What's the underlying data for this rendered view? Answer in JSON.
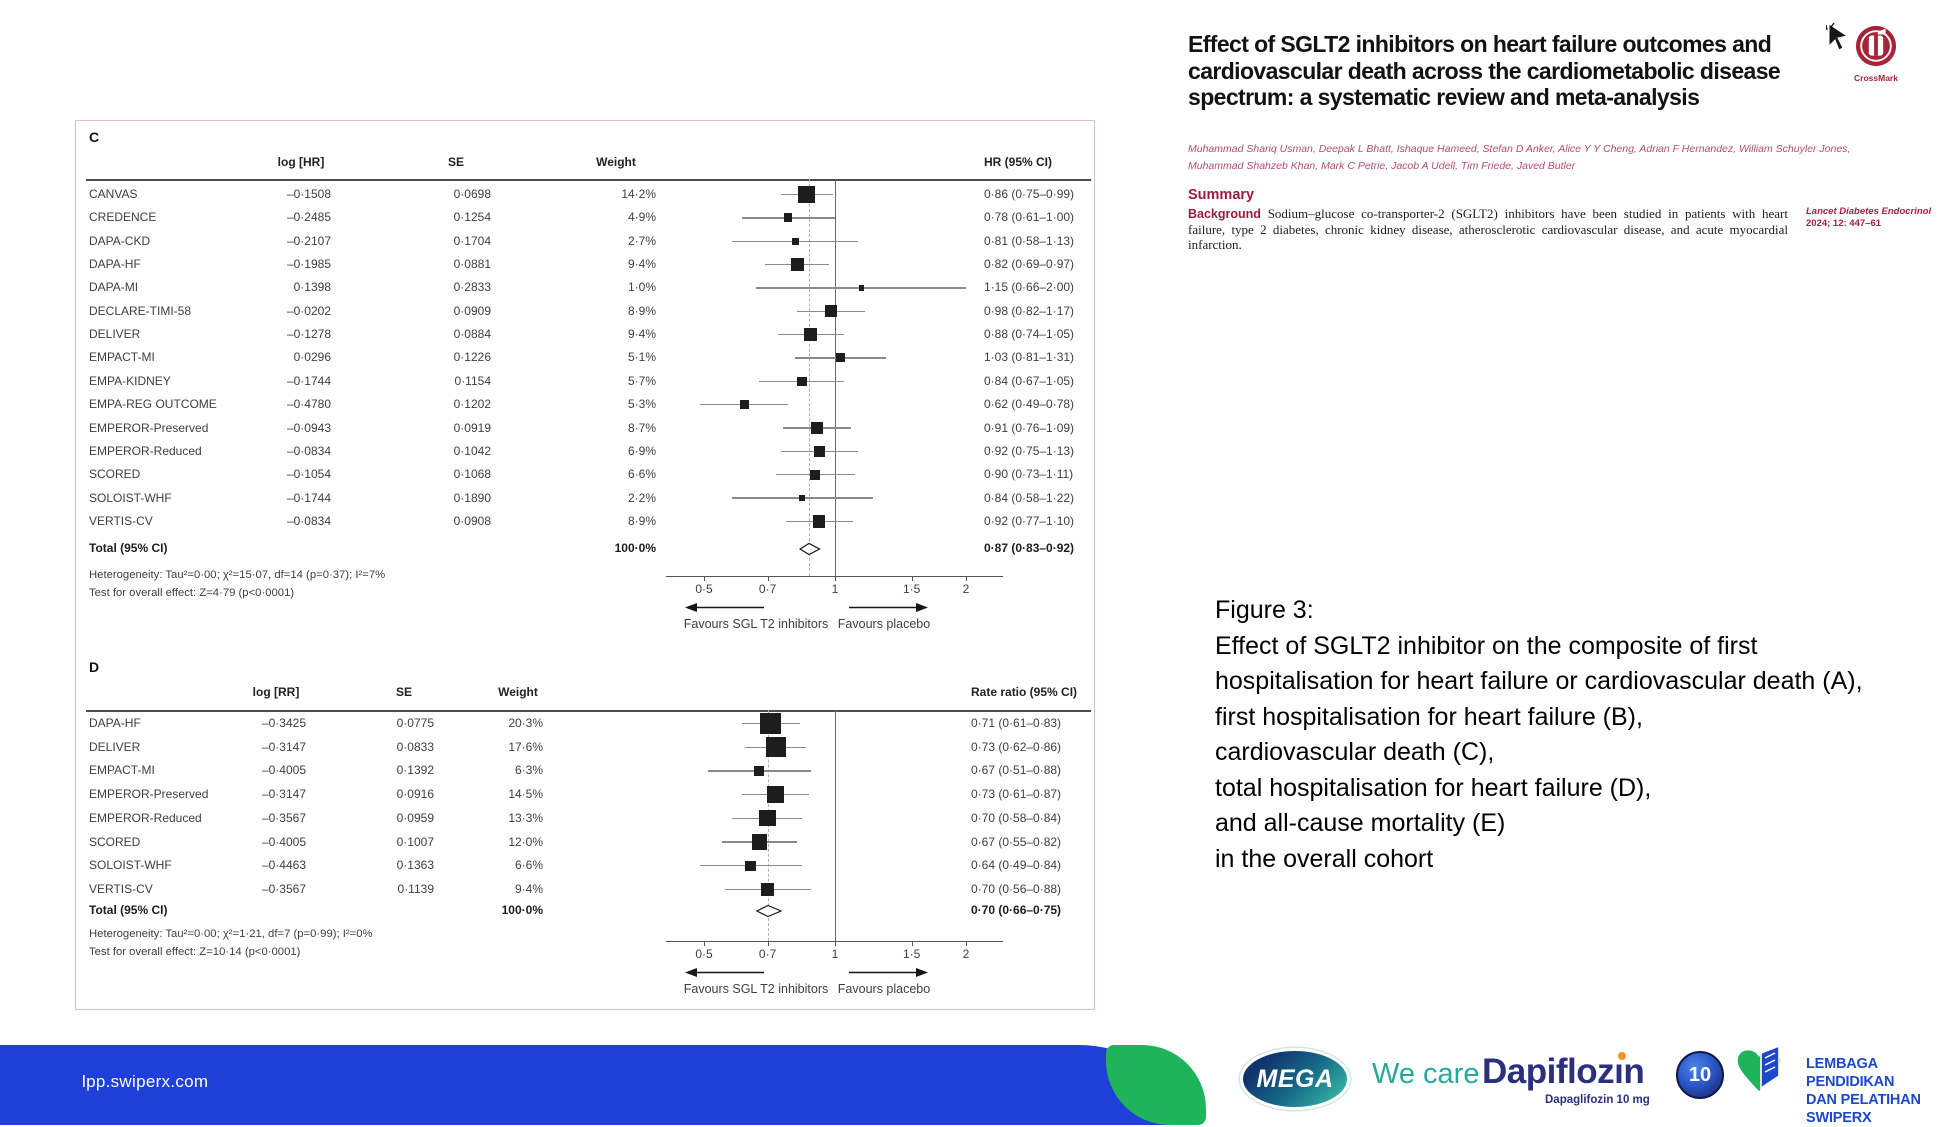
{
  "paper": {
    "title_lines": [
      "Effect of SGLT2 inhibitors on heart failure outcomes and",
      "cardiovascular death across the cardiometabolic disease",
      "spectrum: a systematic review and meta-analysis"
    ],
    "authors_lines": [
      "Muhammad Shariq Usman, Deepak L Bhatt, Ishaque Hameed, Stefan D Anker, Alice Y Y Cheng, Adrian F Hernandez, William Schuyler Jones,",
      "Muhammad Shahzeb Khan, Mark C Petrie, Jacob A Udell, Tim Friede, Javed Butler"
    ],
    "summary_label": "Summary",
    "background_label": "Background",
    "background_text": "Sodium–glucose co-transporter-2 (SGLT2) inhibitors have been studied in patients with heart failure, type 2 diabetes, chronic kidney disease, atherosclerotic cardiovascular disease, and acute myocardial infarction,",
    "citation_journal": "Lancet Diabetes Endocrinol",
    "citation_ref": "2024; 12: 447–61",
    "crossmark_label": "CrossMark"
  },
  "caption": {
    "lines": [
      "Figure 3:",
      "Effect of SGLT2 inhibitor on the composite of first hospitalisation for heart failure or cardiovascular death (A),",
      "first hospitalisation for heart failure (B),",
      "cardiovascular death (C),",
      "total hospitalisation for heart failure (D),",
      "and all-cause mortality (E)",
      "in the overall cohort"
    ]
  },
  "footer": {
    "url": "lpp.swiperx.com",
    "mega_label": "MEGA",
    "wecare_label": "We care",
    "brand_pre": "Dapifloz",
    "brand_i": "ı",
    "brand_post": "n",
    "brand_sub": "Dapaglifozin 10 mg",
    "badge": "10",
    "org_line1": "LEMBAGA PENDIDIKAN",
    "org_line2": "DAN PELATIHAN SWIPERX"
  },
  "chart_data": [
    {
      "type": "forest",
      "panel": "C",
      "effect_label": "HR (95% CI)",
      "columns": {
        "log": "log [HR]",
        "se": "SE",
        "weight": "Weight"
      },
      "x_scale": "log",
      "x_ticks": [
        0.5,
        0.7,
        1,
        1.5,
        2
      ],
      "x_tick_labels": [
        "0·5",
        "0·7",
        "1",
        "1·5",
        "2"
      ],
      "favours_left": "Favours SGL T2 inhibitors",
      "favours_right": "Favours placebo",
      "rows": [
        {
          "study": "CANVAS",
          "log": "–0·1508",
          "se": "0·0698",
          "weight": "14·2%",
          "w": 14.2,
          "est": "0·86 (0·75–0·99)",
          "v": 0.86,
          "lo": 0.75,
          "hi": 0.99
        },
        {
          "study": "CREDENCE",
          "log": "–0·2485",
          "se": "0·1254",
          "weight": "4·9%",
          "w": 4.9,
          "est": "0·78 (0·61–1·00)",
          "v": 0.78,
          "lo": 0.61,
          "hi": 1.0
        },
        {
          "study": "DAPA-CKD",
          "log": "–0·2107",
          "se": "0·1704",
          "weight": "2·7%",
          "w": 2.7,
          "est": "0·81 (0·58–1·13)",
          "v": 0.81,
          "lo": 0.58,
          "hi": 1.13
        },
        {
          "study": "DAPA-HF",
          "log": "–0·1985",
          "se": "0·0881",
          "weight": "9·4%",
          "w": 9.4,
          "est": "0·82 (0·69–0·97)",
          "v": 0.82,
          "lo": 0.69,
          "hi": 0.97
        },
        {
          "study": "DAPA-MI",
          "log": "0·1398",
          "se": "0·2833",
          "weight": "1·0%",
          "w": 1.0,
          "est": "1·15 (0·66–2·00)",
          "v": 1.15,
          "lo": 0.66,
          "hi": 2.0
        },
        {
          "study": "DECLARE-TIMI-58",
          "log": "–0·0202",
          "se": "0·0909",
          "weight": "8·9%",
          "w": 8.9,
          "est": "0·98 (0·82–1·17)",
          "v": 0.98,
          "lo": 0.82,
          "hi": 1.17
        },
        {
          "study": "DELIVER",
          "log": "–0·1278",
          "se": "0·0884",
          "weight": "9·4%",
          "w": 9.4,
          "est": "0·88 (0·74–1·05)",
          "v": 0.88,
          "lo": 0.74,
          "hi": 1.05
        },
        {
          "study": "EMPACT-MI",
          "log": "0·0296",
          "se": "0·1226",
          "weight": "5·1%",
          "w": 5.1,
          "est": "1·03 (0·81–1·31)",
          "v": 1.03,
          "lo": 0.81,
          "hi": 1.31
        },
        {
          "study": "EMPA-KIDNEY",
          "log": "–0·1744",
          "se": "0·1154",
          "weight": "5·7%",
          "w": 5.7,
          "est": "0·84 (0·67–1·05)",
          "v": 0.84,
          "lo": 0.67,
          "hi": 1.05
        },
        {
          "study": "EMPA-REG OUTCOME",
          "log": "–0·4780",
          "se": "0·1202",
          "weight": "5·3%",
          "w": 5.3,
          "est": "0·62 (0·49–0·78)",
          "v": 0.62,
          "lo": 0.49,
          "hi": 0.78
        },
        {
          "study": "EMPEROR-Preserved",
          "log": "–0·0943",
          "se": "0·0919",
          "weight": "8·7%",
          "w": 8.7,
          "est": "0·91 (0·76–1·09)",
          "v": 0.91,
          "lo": 0.76,
          "hi": 1.09
        },
        {
          "study": "EMPEROR-Reduced",
          "log": "–0·0834",
          "se": "0·1042",
          "weight": "6·9%",
          "w": 6.9,
          "est": "0·92 (0·75–1·13)",
          "v": 0.92,
          "lo": 0.75,
          "hi": 1.13
        },
        {
          "study": "SCORED",
          "log": "–0·1054",
          "se": "0·1068",
          "weight": "6·6%",
          "w": 6.6,
          "est": "0·90 (0·73–1·11)",
          "v": 0.9,
          "lo": 0.73,
          "hi": 1.11
        },
        {
          "study": "SOLOIST-WHF",
          "log": "–0·1744",
          "se": "0·1890",
          "weight": "2·2%",
          "w": 2.2,
          "est": "0·84 (0·58–1·22)",
          "v": 0.84,
          "lo": 0.58,
          "hi": 1.22
        },
        {
          "study": "VERTIS-CV",
          "log": "–0·0834",
          "se": "0·0908",
          "weight": "8·9%",
          "w": 8.9,
          "est": "0·92 (0·77–1·10)",
          "v": 0.92,
          "lo": 0.77,
          "hi": 1.1
        }
      ],
      "total": {
        "label": "Total (95% CI)",
        "weight": "100·0%",
        "est": "0·87 (0·83–0·92)",
        "v": 0.87,
        "lo": 0.83,
        "hi": 0.92
      },
      "heterogeneity": "Heterogeneity: Tau²=0·00; χ²=15·07, df=14 (p=0·37); I²=7%",
      "overall_test": "Test for overall effect: Z=4·79 (p<0·0001)"
    },
    {
      "type": "forest",
      "panel": "D",
      "effect_label": "Rate ratio (95% CI)",
      "columns": {
        "log": "log [RR]",
        "se": "SE",
        "weight": "Weight"
      },
      "x_scale": "log",
      "x_ticks": [
        0.5,
        0.7,
        1,
        1.5,
        2
      ],
      "x_tick_labels": [
        "0·5",
        "0·7",
        "1",
        "1·5",
        "2"
      ],
      "favours_left": "Favours SGL T2 inhibitors",
      "favours_right": "Favours placebo",
      "rows": [
        {
          "study": "DAPA-HF",
          "log": "–0·3425",
          "se": "0·0775",
          "weight": "20·3%",
          "w": 20.3,
          "est": "0·71 (0·61–0·83)",
          "v": 0.71,
          "lo": 0.61,
          "hi": 0.83
        },
        {
          "study": "DELIVER",
          "log": "–0·3147",
          "se": "0·0833",
          "weight": "17·6%",
          "w": 17.6,
          "est": "0·73 (0·62–0·86)",
          "v": 0.73,
          "lo": 0.62,
          "hi": 0.86
        },
        {
          "study": "EMPACT-MI",
          "log": "–0·4005",
          "se": "0·1392",
          "weight": "6·3%",
          "w": 6.3,
          "est": "0·67 (0·51–0·88)",
          "v": 0.67,
          "lo": 0.51,
          "hi": 0.88
        },
        {
          "study": "EMPEROR-Preserved",
          "log": "–0·3147",
          "se": "0·0916",
          "weight": "14·5%",
          "w": 14.5,
          "est": "0·73 (0·61–0·87)",
          "v": 0.73,
          "lo": 0.61,
          "hi": 0.87
        },
        {
          "study": "EMPEROR-Reduced",
          "log": "–0·3567",
          "se": "0·0959",
          "weight": "13·3%",
          "w": 13.3,
          "est": "0·70 (0·58–0·84)",
          "v": 0.7,
          "lo": 0.58,
          "hi": 0.84
        },
        {
          "study": "SCORED",
          "log": "–0·4005",
          "se": "0·1007",
          "weight": "12·0%",
          "w": 12.0,
          "est": "0·67 (0·55–0·82)",
          "v": 0.67,
          "lo": 0.55,
          "hi": 0.82
        },
        {
          "study": "SOLOIST-WHF",
          "log": "–0·4463",
          "se": "0·1363",
          "weight": "6·6%",
          "w": 6.6,
          "est": "0·64 (0·49–0·84)",
          "v": 0.64,
          "lo": 0.49,
          "hi": 0.84
        },
        {
          "study": "VERTIS-CV",
          "log": "–0·3567",
          "se": "0·1139",
          "weight": "9·4%",
          "w": 9.4,
          "est": "0·70 (0·56–0·88)",
          "v": 0.7,
          "lo": 0.56,
          "hi": 0.88
        }
      ],
      "total": {
        "label": "Total (95% CI)",
        "weight": "100·0%",
        "est": "0·70 (0·66–0·75)",
        "v": 0.7,
        "lo": 0.66,
        "hi": 0.75
      },
      "heterogeneity": "Heterogeneity: Tau²=0·00; χ²=1·21, df=7 (p=0·99); I²=0%",
      "overall_test": "Test for overall effect: Z=10·14 (p<0·0001)"
    }
  ]
}
